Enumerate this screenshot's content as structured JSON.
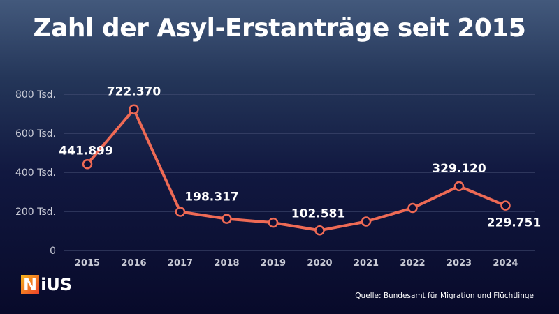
{
  "title": "Zahl der Asyl-Erstanträge seit 2015",
  "source": "Quelle: Bundesamt für Migration und Flüchtlinge",
  "logo": {
    "first": "N",
    "rest": "iUS"
  },
  "colors": {
    "line": "#ee6a55",
    "grid": "#4a5479",
    "marker_fill": "#0c0f35"
  },
  "chart_data": {
    "type": "line",
    "title": "Zahl der Asyl-Erstanträge seit 2015",
    "xlabel": "",
    "ylabel": "",
    "categories": [
      "2015",
      "2016",
      "2017",
      "2018",
      "2019",
      "2020",
      "2021",
      "2022",
      "2023",
      "2024"
    ],
    "values": [
      441899,
      722370,
      198317,
      161931,
      142509,
      102581,
      148233,
      217774,
      329120,
      229751
    ],
    "data_labels": {
      "2015": "441.899",
      "2016": "722.370",
      "2017": "198.317",
      "2020": "102.581",
      "2023": "329.120",
      "2024": "229.751"
    },
    "ylim": [
      0,
      800000
    ],
    "yticks": [
      0,
      200000,
      400000,
      600000,
      800000
    ],
    "ytick_labels": [
      "0",
      "200 Tsd.",
      "400 Tsd.",
      "600 Tsd.",
      "800 Tsd."
    ],
    "grid": true
  }
}
